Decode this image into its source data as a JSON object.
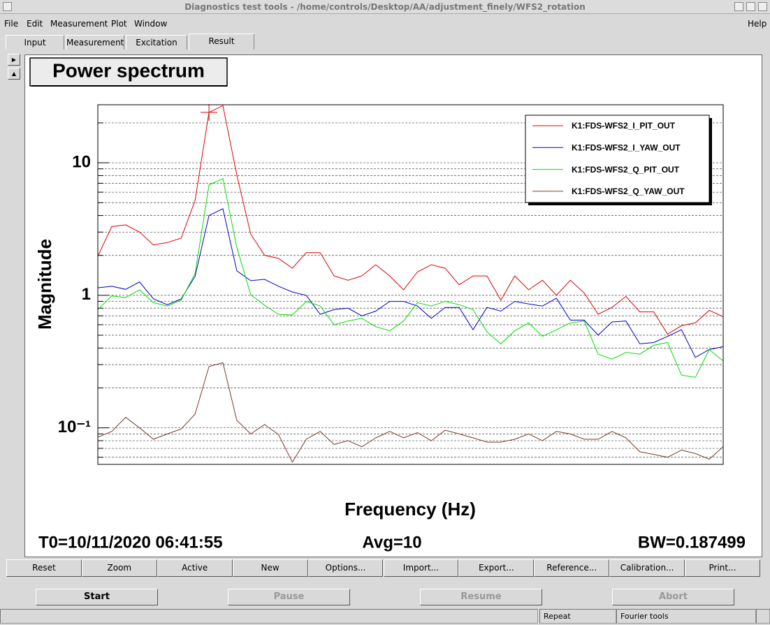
{
  "window": {
    "title": "Diagnostics test tools - /home/controls/Desktop/AA/adjustment_finely/WFS2_rotation"
  },
  "menu": [
    "File",
    "Edit",
    "Measurement",
    "Plot",
    "Window"
  ],
  "help": "Help",
  "tabs": [
    "Input",
    "Measurement",
    "Excitation",
    "Result"
  ],
  "chart_data": {
    "type": "line",
    "title": "Power spectrum",
    "xlabel": "Frequency (Hz)",
    "ylabel": "Magnitude",
    "annotations": [
      "T0=10/11/2020 06:41:55",
      "Avg=10",
      "BW=0.187499"
    ],
    "categories": [
      null,
      null,
      null,
      null,
      null,
      null,
      null,
      null,
      null,
      null,
      null,
      null,
      null,
      null,
      null,
      null,
      null,
      null,
      null,
      null,
      null,
      null,
      null,
      null,
      null,
      null,
      null,
      null,
      null,
      null,
      null,
      null,
      null,
      null,
      null,
      null,
      null,
      null,
      null,
      null,
      null,
      null,
      null,
      null,
      null,
      null
    ],
    "ylog": true,
    "ylim": [
      0.053,
      27.4
    ],
    "yticks": [
      {
        "value": 0.1,
        "label": "10⁻¹"
      },
      1,
      10
    ],
    "grid": true,
    "legend": "upper right",
    "series": [
      {
        "name": "K1:FDS-WFS2_I_PIT_OUT",
        "color": "#e00000",
        "values": [
          1.97,
          3.3,
          3.4,
          3.0,
          2.4,
          2.5,
          2.7,
          5.2,
          24,
          27,
          8.1,
          2.9,
          2.0,
          1.9,
          1.6,
          2.1,
          2.1,
          1.4,
          1.3,
          1.4,
          1.7,
          1.4,
          1.1,
          1.5,
          1.7,
          1.6,
          1.2,
          1.4,
          1.4,
          0.92,
          1.4,
          1.1,
          1.3,
          1.0,
          1.3,
          1.04,
          0.72,
          0.81,
          0.98,
          0.75,
          0.75,
          0.51,
          0.59,
          0.62,
          0.77,
          0.69
        ]
      },
      {
        "name": "K1:FDS-WFS2_I_YAW_OUT",
        "color": "#0000c8",
        "values": [
          1.14,
          1.17,
          1.11,
          1.26,
          0.94,
          0.85,
          0.94,
          1.39,
          4.0,
          4.5,
          1.53,
          1.29,
          1.32,
          1.17,
          1.06,
          1.0,
          0.72,
          0.78,
          0.8,
          0.7,
          0.76,
          0.9,
          0.9,
          0.83,
          0.67,
          0.81,
          0.81,
          0.55,
          0.81,
          0.76,
          0.9,
          0.86,
          0.83,
          0.95,
          0.65,
          0.65,
          0.5,
          0.63,
          0.64,
          0.43,
          0.44,
          0.49,
          0.55,
          0.34,
          0.39,
          0.41
        ]
      },
      {
        "name": "K1:FDS-WFS2_Q_PIT_OUT",
        "color": "#00dd00",
        "values": [
          0.78,
          0.99,
          0.96,
          1.1,
          0.88,
          0.83,
          0.92,
          1.46,
          6.8,
          7.6,
          2.3,
          1.01,
          0.84,
          0.72,
          0.71,
          0.9,
          0.83,
          0.6,
          0.64,
          0.67,
          0.58,
          0.54,
          0.64,
          0.88,
          0.83,
          0.9,
          0.85,
          0.78,
          0.53,
          0.43,
          0.54,
          0.62,
          0.49,
          0.55,
          0.62,
          0.64,
          0.36,
          0.33,
          0.37,
          0.36,
          0.42,
          0.44,
          0.25,
          0.24,
          0.39,
          0.32
        ]
      },
      {
        "name": "K1:FDS-WFS2_Q_YAW_OUT",
        "color": "#7a3a2a",
        "values": [
          0.085,
          0.094,
          0.12,
          0.1,
          0.082,
          0.09,
          0.098,
          0.127,
          0.29,
          0.31,
          0.114,
          0.09,
          0.106,
          0.089,
          0.055,
          0.082,
          0.094,
          0.075,
          0.08,
          0.072,
          0.084,
          0.094,
          0.084,
          0.092,
          0.08,
          0.096,
          0.09,
          0.084,
          0.078,
          0.078,
          0.082,
          0.09,
          0.08,
          0.094,
          0.09,
          0.082,
          0.082,
          0.094,
          0.084,
          0.066,
          0.063,
          0.06,
          0.068,
          0.064,
          0.058,
          0.072
        ]
      }
    ]
  },
  "toolbar": [
    "Reset",
    "Zoom",
    "Active",
    "New",
    "Options...",
    "Import...",
    "Export...",
    "Reference...",
    "Calibration...",
    "Print..."
  ],
  "controls": [
    "Start",
    "Pause",
    "Resume",
    "Abort"
  ],
  "status": [
    "Repeat",
    "Fourier tools"
  ]
}
